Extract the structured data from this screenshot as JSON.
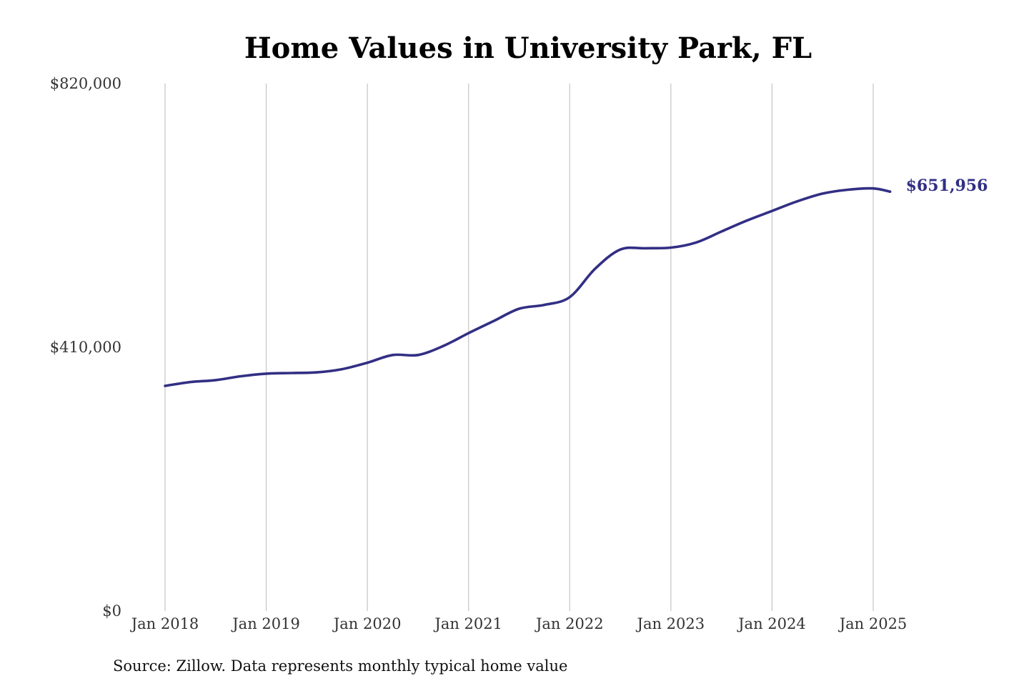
{
  "chart_data": {
    "type": "line",
    "title": "Home Values in University Park, FL",
    "xlabel": "",
    "ylabel": "",
    "ylim": [
      0,
      820000
    ],
    "yticks": [
      {
        "value": 0,
        "label": "$0"
      },
      {
        "value": 410000,
        "label": "$410,000"
      },
      {
        "value": 820000,
        "label": "$820,000"
      }
    ],
    "xlim": [
      "2018-01",
      "2025-03"
    ],
    "xticks": [
      {
        "date": "2018-01",
        "label": "Jan 2018"
      },
      {
        "date": "2019-01",
        "label": "Jan 2019"
      },
      {
        "date": "2020-01",
        "label": "Jan 2020"
      },
      {
        "date": "2021-01",
        "label": "Jan 2021"
      },
      {
        "date": "2022-01",
        "label": "Jan 2022"
      },
      {
        "date": "2023-01",
        "label": "Jan 2023"
      },
      {
        "date": "2024-01",
        "label": "Jan 2024"
      },
      {
        "date": "2025-01",
        "label": "Jan 2025"
      }
    ],
    "grid": {
      "vertical": true,
      "horizontal": false
    },
    "series": [
      {
        "name": "",
        "color": "#322f84",
        "points": [
          {
            "date": "2018-01",
            "value": 350000
          },
          {
            "date": "2018-04",
            "value": 356000
          },
          {
            "date": "2018-07",
            "value": 359000
          },
          {
            "date": "2018-10",
            "value": 365000
          },
          {
            "date": "2019-01",
            "value": 369000
          },
          {
            "date": "2019-04",
            "value": 370000
          },
          {
            "date": "2019-07",
            "value": 371000
          },
          {
            "date": "2019-10",
            "value": 376000
          },
          {
            "date": "2020-01",
            "value": 386000
          },
          {
            "date": "2020-04",
            "value": 398000
          },
          {
            "date": "2020-07",
            "value": 398000
          },
          {
            "date": "2020-10",
            "value": 412000
          },
          {
            "date": "2021-01",
            "value": 432000
          },
          {
            "date": "2021-04",
            "value": 451000
          },
          {
            "date": "2021-07",
            "value": 470000
          },
          {
            "date": "2021-10",
            "value": 476000
          },
          {
            "date": "2022-01",
            "value": 488000
          },
          {
            "date": "2022-04",
            "value": 532000
          },
          {
            "date": "2022-07",
            "value": 562000
          },
          {
            "date": "2022-10",
            "value": 564000
          },
          {
            "date": "2023-01",
            "value": 565000
          },
          {
            "date": "2023-04",
            "value": 573000
          },
          {
            "date": "2023-07",
            "value": 590000
          },
          {
            "date": "2023-10",
            "value": 607000
          },
          {
            "date": "2024-01",
            "value": 622000
          },
          {
            "date": "2024-04",
            "value": 637000
          },
          {
            "date": "2024-07",
            "value": 649000
          },
          {
            "date": "2024-10",
            "value": 655000
          },
          {
            "date": "2025-01",
            "value": 657000
          },
          {
            "date": "2025-03",
            "value": 651956
          }
        ]
      }
    ],
    "end_label": "$651,956"
  },
  "source": "Source: Zillow. Data represents monthly typical home value"
}
